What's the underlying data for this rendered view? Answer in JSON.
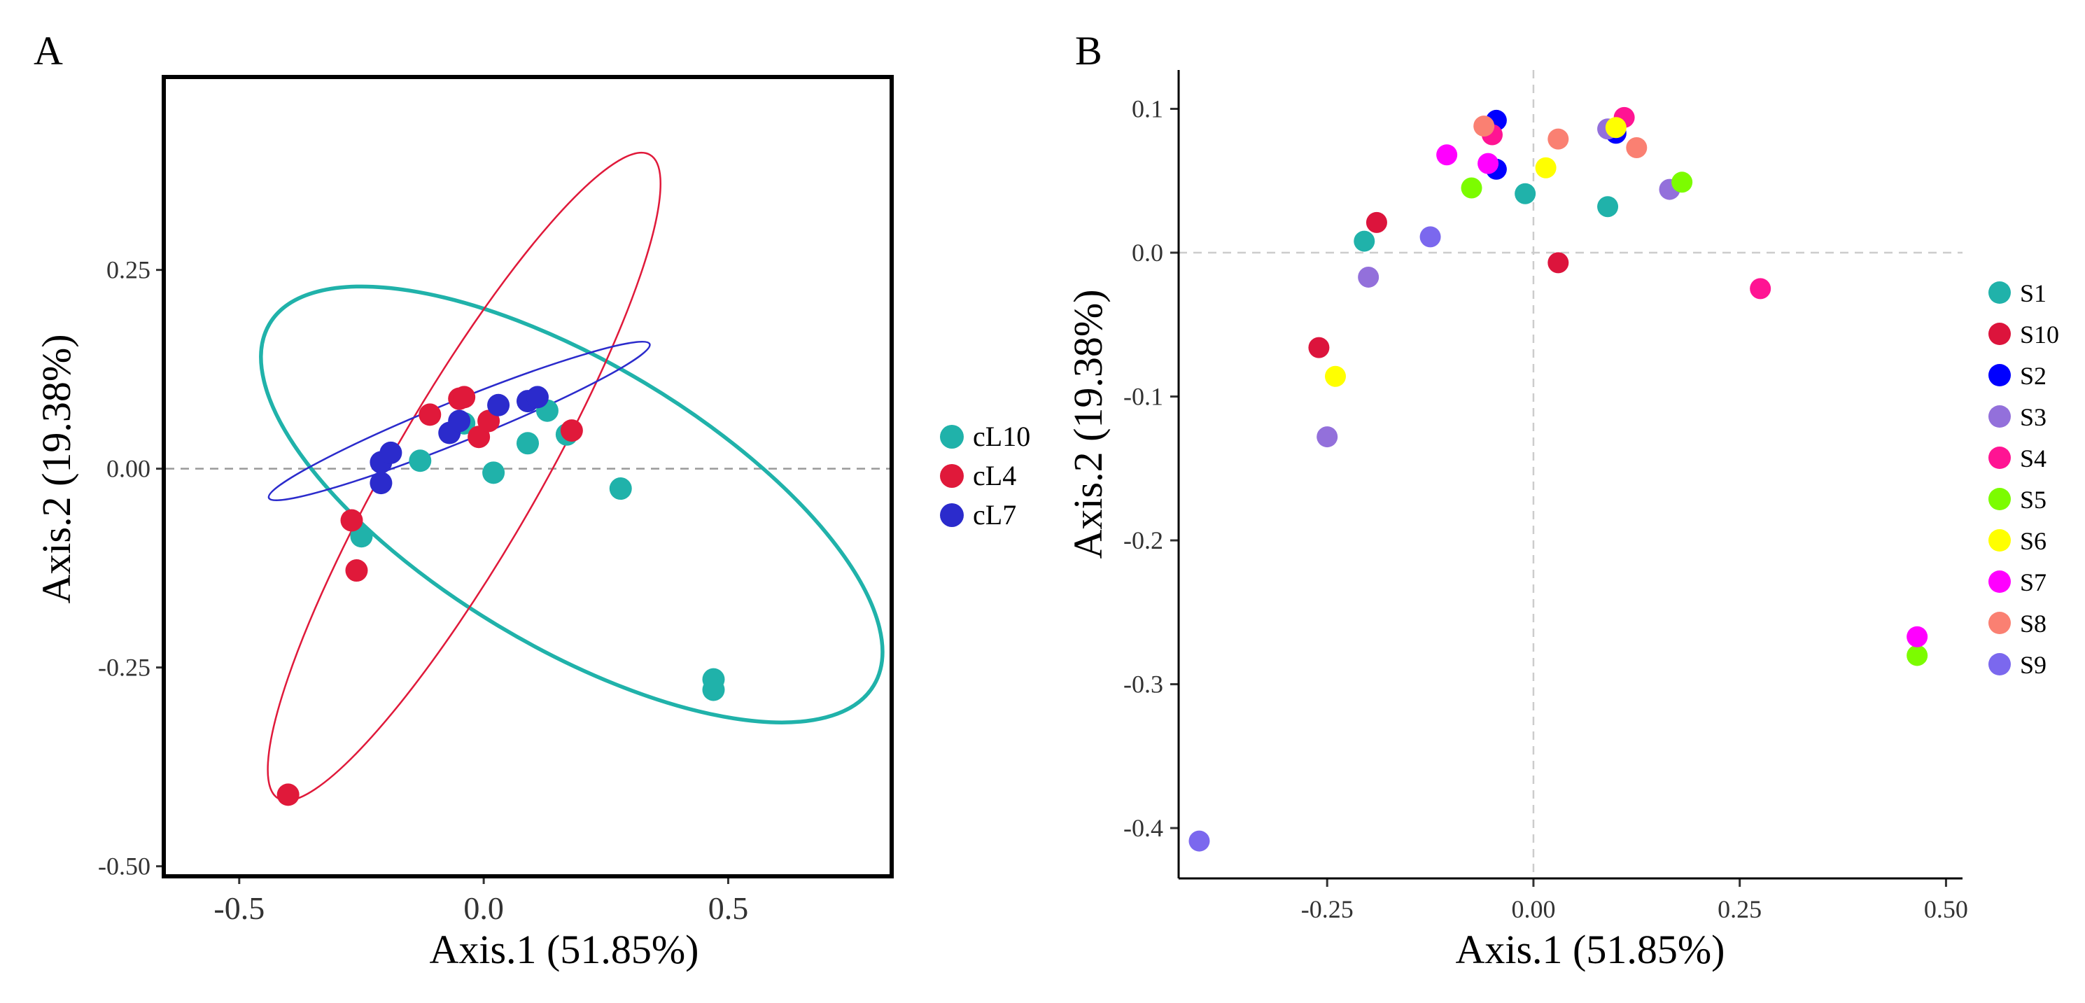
{
  "chart_data": [
    {
      "type": "scatter",
      "panel_label": "A",
      "xlabel": "Axis.1 (51.85%)",
      "ylabel": "Axis.2 (19.38%)",
      "xlim": [
        -0.65,
        0.83
      ],
      "ylim": [
        -0.51,
        0.49
      ],
      "xticks": [
        -0.5,
        0.0,
        0.5
      ],
      "xtick_labels": [
        "-0.5",
        "0.0",
        "0.5"
      ],
      "yticks": [
        -0.5,
        -0.25,
        0.0,
        0.25
      ],
      "ytick_labels": [
        "-0.50",
        "-0.25",
        "0.00",
        "0.25"
      ],
      "reference_line_y": 0,
      "grid": false,
      "legend_position": "right",
      "series": [
        {
          "name": "cL10",
          "color": "#20B2AA",
          "points": [
            [
              -0.25,
              -0.085
            ],
            [
              -0.13,
              0.01
            ],
            [
              -0.04,
              0.057
            ],
            [
              0.02,
              -0.005
            ],
            [
              0.09,
              0.032
            ],
            [
              0.13,
              0.073
            ],
            [
              0.17,
              0.043
            ],
            [
              0.28,
              -0.025
            ],
            [
              0.47,
              -0.265
            ],
            [
              0.47,
              -0.278
            ]
          ],
          "ellipse": {
            "cx": 0.18,
            "cy": -0.045,
            "rx": 0.72,
            "ry": 0.29,
            "angle_deg": 30.9
          }
        },
        {
          "name": "cL4",
          "color": "#E0193A",
          "points": [
            [
              -0.4,
              -0.41
            ],
            [
              -0.26,
              -0.128
            ],
            [
              -0.27,
              -0.065
            ],
            [
              -0.11,
              0.068
            ],
            [
              -0.05,
              0.088
            ],
            [
              -0.04,
              0.09
            ],
            [
              -0.01,
              0.04
            ],
            [
              0.01,
              0.06
            ],
            [
              0.18,
              0.048
            ]
          ],
          "ellipse": {
            "cx": -0.04,
            "cy": -0.01,
            "rx": 0.76,
            "ry": 0.15,
            "angle_deg": -60
          }
        },
        {
          "name": "cL7",
          "color": "#2B2BCC",
          "points": [
            [
              -0.21,
              0.008
            ],
            [
              -0.21,
              -0.018
            ],
            [
              -0.19,
              0.02
            ],
            [
              -0.07,
              0.045
            ],
            [
              -0.05,
              0.06
            ],
            [
              0.03,
              0.08
            ],
            [
              0.09,
              0.085
            ],
            [
              0.11,
              0.09
            ]
          ],
          "ellipse": {
            "cx": -0.05,
            "cy": 0.06,
            "rx": 0.42,
            "ry": 0.042,
            "angle_deg": -22
          }
        }
      ]
    },
    {
      "type": "scatter",
      "panel_label": "B",
      "xlabel": "Axis.1 (51.85%)",
      "ylabel": "Axis.2 (19.38%)",
      "xlim": [
        -0.43,
        0.52
      ],
      "ylim": [
        -0.435,
        0.127
      ],
      "xticks": [
        -0.25,
        0.0,
        0.25,
        0.5
      ],
      "xtick_labels": [
        "-0.25",
        "0.00",
        "0.25",
        "0.50"
      ],
      "yticks": [
        -0.4,
        -0.3,
        -0.2,
        -0.1,
        0.0,
        0.1
      ],
      "ytick_labels": [
        "-0.4",
        "-0.3",
        "-0.2",
        "-0.1",
        "0.0",
        "0.1"
      ],
      "reference_line_x": 0,
      "reference_line_y": 0,
      "grid": false,
      "legend_position": "right",
      "series": [
        {
          "name": "S1",
          "color": "#20B2AA",
          "points": [
            [
              -0.205,
              0.008
            ],
            [
              -0.01,
              0.041
            ],
            [
              0.09,
              0.032
            ]
          ]
        },
        {
          "name": "S10",
          "color": "#DC143C",
          "points": [
            [
              -0.19,
              0.021
            ],
            [
              -0.26,
              -0.066
            ],
            [
              0.03,
              -0.007
            ]
          ]
        },
        {
          "name": "S2",
          "color": "#0000FF",
          "points": [
            [
              -0.045,
              0.092
            ],
            [
              -0.045,
              0.058
            ],
            [
              0.1,
              0.083
            ]
          ]
        },
        {
          "name": "S3",
          "color": "#9370DB",
          "points": [
            [
              -0.2,
              -0.017
            ],
            [
              -0.25,
              -0.128
            ],
            [
              0.09,
              0.086
            ],
            [
              0.165,
              0.044
            ]
          ]
        },
        {
          "name": "S4",
          "color": "#FF1493",
          "points": [
            [
              -0.05,
              0.082
            ],
            [
              0.11,
              0.094
            ],
            [
              0.275,
              -0.025
            ]
          ]
        },
        {
          "name": "S5",
          "color": "#7CFC00",
          "points": [
            [
              -0.075,
              0.045
            ],
            [
              0.18,
              0.049
            ],
            [
              0.465,
              -0.28
            ]
          ]
        },
        {
          "name": "S6",
          "color": "#FFFF00",
          "points": [
            [
              -0.24,
              -0.086
            ],
            [
              0.015,
              0.059
            ],
            [
              0.1,
              0.087
            ]
          ]
        },
        {
          "name": "S7",
          "color": "#FF00FF",
          "points": [
            [
              -0.105,
              0.068
            ],
            [
              -0.055,
              0.062
            ],
            [
              0.465,
              -0.267
            ]
          ]
        },
        {
          "name": "S8",
          "color": "#FA8072",
          "points": [
            [
              -0.06,
              0.088
            ],
            [
              0.03,
              0.079
            ],
            [
              0.125,
              0.073
            ]
          ]
        },
        {
          "name": "S9",
          "color": "#7B68EE",
          "points": [
            [
              -0.125,
              0.011
            ],
            [
              -0.405,
              -0.409
            ]
          ]
        }
      ]
    }
  ]
}
